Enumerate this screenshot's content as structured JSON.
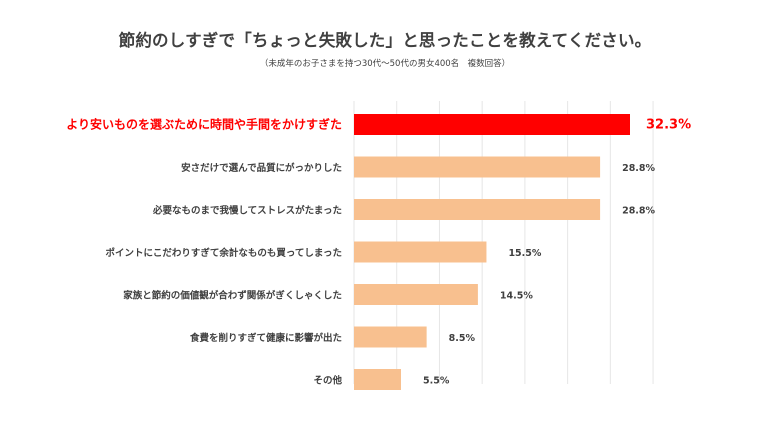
{
  "title": "節約のしすぎで「ちょっと失敗した」と思ったことを教えてください。",
  "subtitle": "（未成年のお子さまを持つ30代〜50代の男女400名　複数回答）",
  "colors": {
    "highlight": "#ff0000",
    "bar": "#f8c08f",
    "text": "#404040",
    "grid": "#e6e6e6"
  },
  "chart_data": {
    "type": "bar",
    "orientation": "horizontal",
    "categories": [
      "より安いものを選ぶために時間や手間をかけすぎた",
      "安さだけで選んで品質にがっかりした",
      "必要なものまで我慢してストレスがたまった",
      "ポイントにこだわりすぎて余計なものも買ってしまった",
      "家族と節約の価値観が合わず関係がぎくしゃくした",
      "食費を削りすぎて健康に影響が出た",
      "その他"
    ],
    "values": [
      32.3,
      28.8,
      28.8,
      15.5,
      14.5,
      8.5,
      5.5
    ],
    "labels": [
      "32.3%",
      "28.8%",
      "28.8%",
      "15.5%",
      "14.5%",
      "8.5%",
      "5.5%"
    ],
    "highlight_index": 0,
    "xlim": [
      0,
      35
    ],
    "grid": true,
    "unit": "%"
  }
}
